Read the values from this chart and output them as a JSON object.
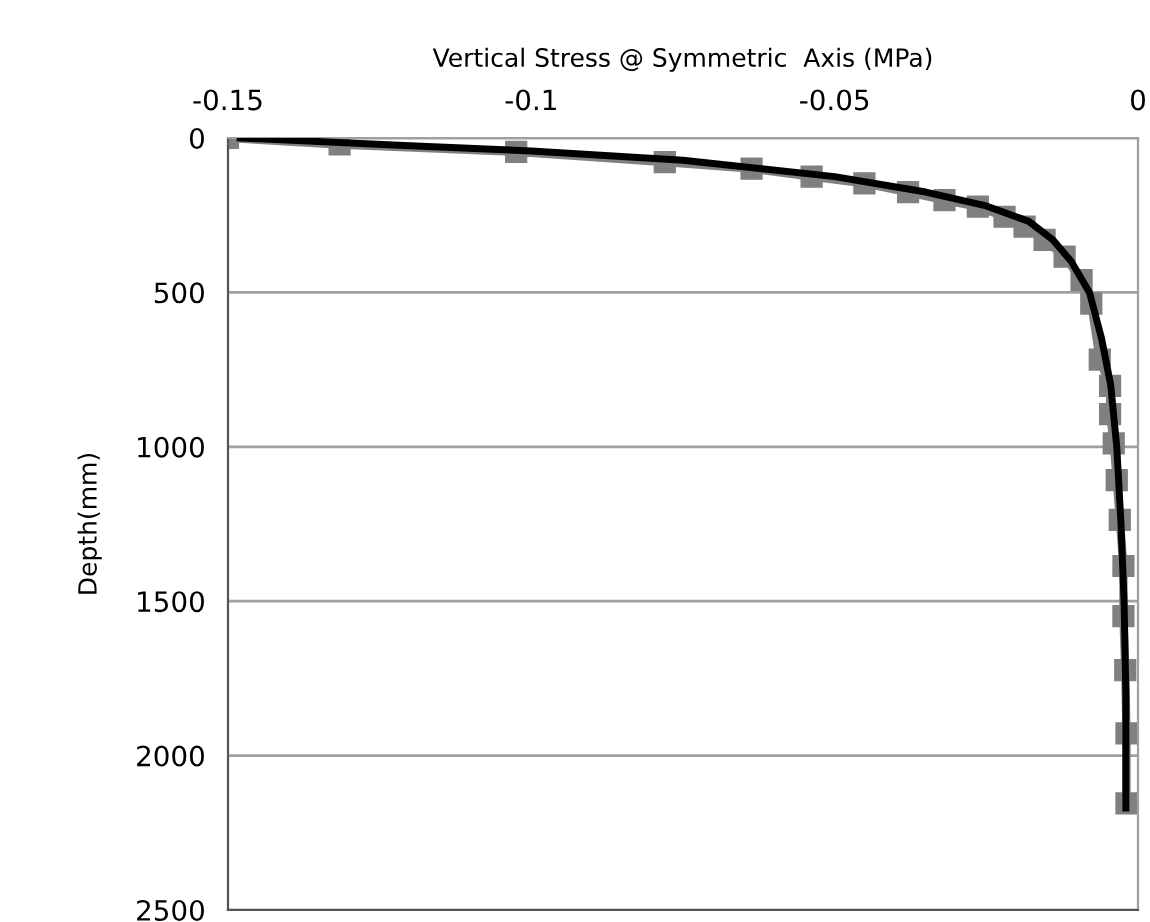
{
  "chart_data": {
    "type": "line",
    "xlabel": "Vertical Stress @ Symmetric  Axis (MPa)",
    "ylabel": "Depth(mm)",
    "xlim": [
      -0.15,
      0
    ],
    "xticks": [
      -0.15,
      -0.1,
      -0.05,
      0
    ],
    "ylim": [
      2500,
      0
    ],
    "yticks": [
      0,
      500,
      1000,
      1500,
      2000,
      2500
    ],
    "grid": "y",
    "legend": false,
    "series": [
      {
        "color": "#808080",
        "marker": "square",
        "line_style": "solid",
        "x": [
          -0.15,
          -0.1316,
          -0.1025,
          -0.078,
          -0.0637,
          -0.0538,
          -0.0451,
          -0.0379,
          -0.0319,
          -0.0264,
          -0.022,
          -0.0187,
          -0.0154,
          -0.0121,
          -0.0093,
          -0.0077,
          -0.0063,
          -0.0046,
          -0.0046,
          -0.004,
          -0.0035,
          -0.003,
          -0.0024,
          -0.0024,
          -0.0021,
          -0.0019,
          -0.0019
        ],
        "values": [
          0,
          21,
          45,
          78,
          99,
          125,
          147,
          175,
          201,
          222,
          255,
          287,
          330,
          384,
          460,
          536,
          718,
          803,
          894,
          989,
          1108,
          1237,
          1386,
          1548,
          1723,
          1928,
          2155
        ]
      },
      {
        "color": "#000000",
        "marker": "none",
        "line_style": "solid",
        "x": [
          -0.148,
          -0.12,
          -0.1,
          -0.075,
          -0.05,
          -0.035,
          -0.025,
          -0.018,
          -0.014,
          -0.011,
          -0.008,
          -0.006,
          -0.0045,
          -0.0035,
          -0.0028,
          -0.0023,
          -0.002,
          -0.002
        ],
        "values": [
          0,
          25,
          42,
          72,
          125,
          175,
          220,
          270,
          330,
          400,
          500,
          650,
          800,
          1000,
          1250,
          1500,
          1800,
          2170
        ]
      }
    ]
  }
}
